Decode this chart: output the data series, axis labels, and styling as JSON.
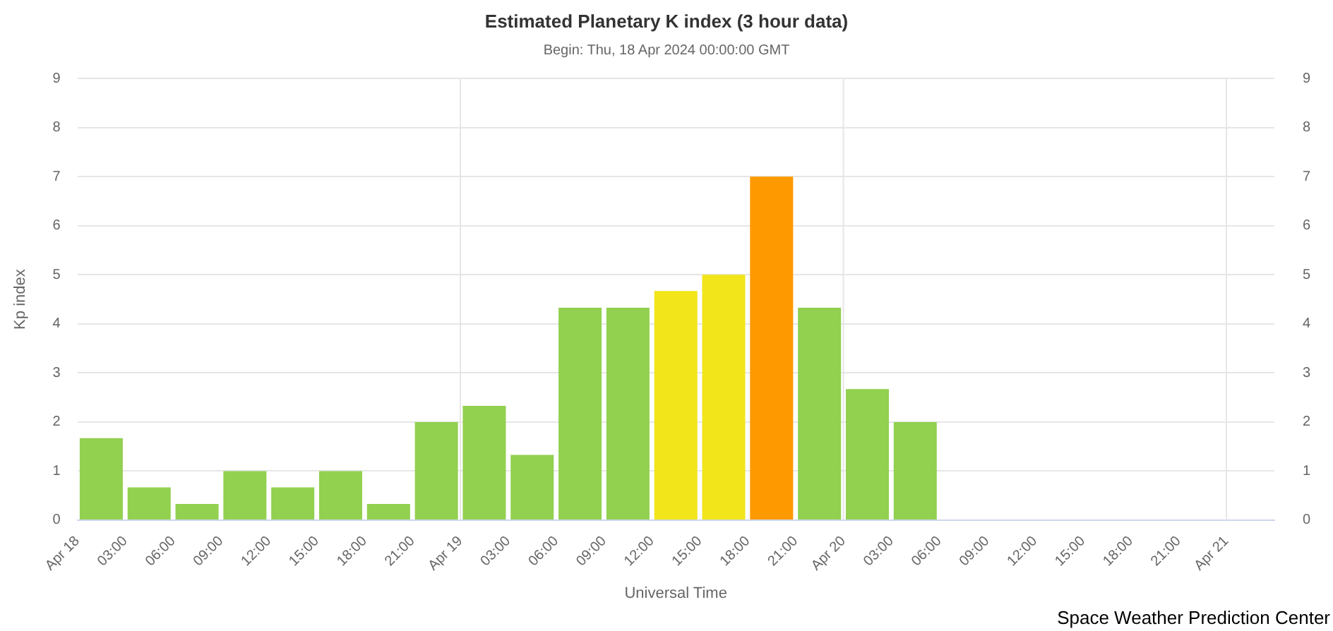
{
  "chart_data": {
    "type": "bar",
    "title": "Estimated Planetary K index (3 hour data)",
    "subtitle": "Begin: Thu, 18 Apr 2024 00:00:00 GMT",
    "xlabel": "Universal Time",
    "ylabel": "Kp index",
    "annotations": [
      "Space Weather Prediction Center"
    ],
    "x": [
      "2024-04-18T01:30",
      "2024-04-18T04:30",
      "2024-04-18T07:30",
      "2024-04-18T10:30",
      "2024-04-18T13:30",
      "2024-04-18T16:30",
      "2024-04-18T19:30",
      "2024-04-18T22:30",
      "2024-04-19T01:30",
      "2024-04-19T04:30",
      "2024-04-19T07:30",
      "2024-04-19T10:30",
      "2024-04-19T13:30",
      "2024-04-19T16:30",
      "2024-04-19T19:30",
      "2024-04-19T22:30",
      "2024-04-20T01:30",
      "2024-04-20T04:30"
    ],
    "values": [
      1.67,
      0.67,
      0.33,
      1,
      0.67,
      1,
      0.33,
      2,
      2.33,
      1.33,
      4.33,
      4.33,
      4.67,
      5,
      7,
      4.33,
      2.67,
      2
    ],
    "colors": [
      "#92d050",
      "#92d050",
      "#92d050",
      "#92d050",
      "#92d050",
      "#92d050",
      "#92d050",
      "#92d050",
      "#92d050",
      "#92d050",
      "#92d050",
      "#92d050",
      "#f2e51a",
      "#f2e51a",
      "#ff9900",
      "#92d050",
      "#92d050",
      "#92d050"
    ],
    "xlim": [
      "2024-04-18T00:00",
      "2024-04-21T03:00"
    ],
    "xticks": [
      {
        "value": "2024-04-18T00:00",
        "label": "Apr 18"
      },
      {
        "value": "2024-04-18T03:00",
        "label": "03:00"
      },
      {
        "value": "2024-04-18T06:00",
        "label": "06:00"
      },
      {
        "value": "2024-04-18T09:00",
        "label": "09:00"
      },
      {
        "value": "2024-04-18T12:00",
        "label": "12:00"
      },
      {
        "value": "2024-04-18T15:00",
        "label": "15:00"
      },
      {
        "value": "2024-04-18T18:00",
        "label": "18:00"
      },
      {
        "value": "2024-04-18T21:00",
        "label": "21:00"
      },
      {
        "value": "2024-04-19T00:00",
        "label": "Apr 19"
      },
      {
        "value": "2024-04-19T03:00",
        "label": "03:00"
      },
      {
        "value": "2024-04-19T06:00",
        "label": "06:00"
      },
      {
        "value": "2024-04-19T09:00",
        "label": "09:00"
      },
      {
        "value": "2024-04-19T12:00",
        "label": "12:00"
      },
      {
        "value": "2024-04-19T15:00",
        "label": "15:00"
      },
      {
        "value": "2024-04-19T18:00",
        "label": "18:00"
      },
      {
        "value": "2024-04-19T21:00",
        "label": "21:00"
      },
      {
        "value": "2024-04-20T00:00",
        "label": "Apr 20"
      },
      {
        "value": "2024-04-20T03:00",
        "label": "03:00"
      },
      {
        "value": "2024-04-20T06:00",
        "label": "06:00"
      },
      {
        "value": "2024-04-20T09:00",
        "label": "09:00"
      },
      {
        "value": "2024-04-20T12:00",
        "label": "12:00"
      },
      {
        "value": "2024-04-20T15:00",
        "label": "15:00"
      },
      {
        "value": "2024-04-20T18:00",
        "label": "18:00"
      },
      {
        "value": "2024-04-20T21:00",
        "label": "21:00"
      },
      {
        "value": "2024-04-21T00:00",
        "label": "Apr 21"
      }
    ],
    "ylim": [
      0,
      9
    ],
    "yticks": [
      0,
      1,
      2,
      3,
      4,
      5,
      6,
      7,
      8,
      9
    ],
    "y2lim": [
      0,
      9
    ],
    "y2ticks": [
      0,
      1,
      2,
      3,
      4,
      5,
      6,
      7,
      8,
      9
    ],
    "ref_lines": [
      {
        "axis": "x",
        "value": "2024-04-19T00:00",
        "color": "#e6e6e6"
      },
      {
        "axis": "x",
        "value": "2024-04-20T00:00",
        "color": "#e6e6e6"
      },
      {
        "axis": "x",
        "value": "2024-04-21T00:00",
        "color": "#e6e6e6"
      }
    ],
    "grid": "y",
    "legend": false
  }
}
